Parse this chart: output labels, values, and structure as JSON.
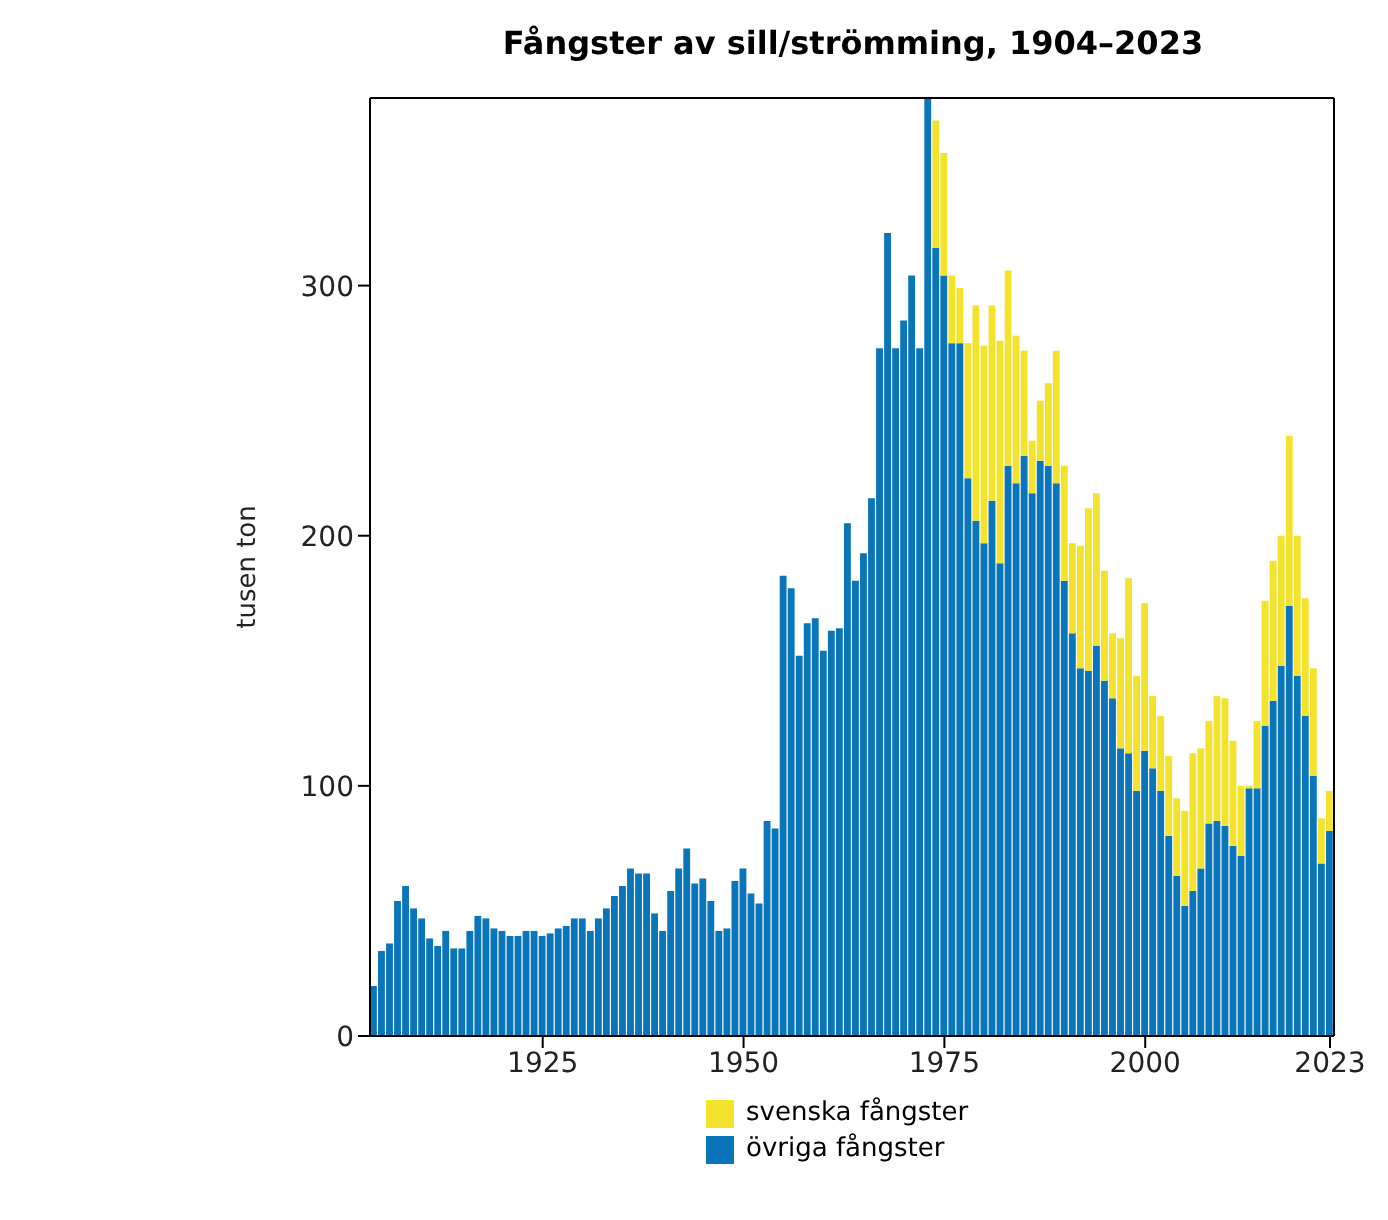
{
  "chart_data": {
    "type": "bar",
    "title": "Fångster av sill/strömming, 1904–2023",
    "ylabel": "tusen ton",
    "stacked": true,
    "legend": "bottom",
    "grid": false,
    "x": [
      1904,
      1905,
      1906,
      1907,
      1908,
      1909,
      1910,
      1911,
      1912,
      1913,
      1914,
      1915,
      1916,
      1917,
      1918,
      1919,
      1920,
      1921,
      1922,
      1923,
      1924,
      1925,
      1926,
      1927,
      1928,
      1929,
      1930,
      1931,
      1932,
      1933,
      1934,
      1935,
      1936,
      1937,
      1938,
      1939,
      1940,
      1941,
      1942,
      1943,
      1944,
      1945,
      1946,
      1947,
      1948,
      1949,
      1950,
      1951,
      1952,
      1953,
      1954,
      1955,
      1956,
      1957,
      1958,
      1959,
      1960,
      1961,
      1962,
      1963,
      1964,
      1965,
      1966,
      1967,
      1968,
      1969,
      1970,
      1971,
      1972,
      1973,
      1974,
      1975,
      1976,
      1977,
      1978,
      1979,
      1980,
      1981,
      1982,
      1983,
      1984,
      1985,
      1986,
      1987,
      1988,
      1989,
      1990,
      1991,
      1992,
      1993,
      1994,
      1995,
      1996,
      1997,
      1998,
      1999,
      2000,
      2001,
      2002,
      2003,
      2004,
      2005,
      2006,
      2007,
      2008,
      2009,
      2010,
      2011,
      2012,
      2013,
      2014,
      2015,
      2016,
      2017,
      2018,
      2019,
      2020,
      2021,
      2022,
      2023
    ],
    "xlim": [
      1903.5,
      2023.5
    ],
    "xticks": [
      1925,
      1950,
      1975,
      2000,
      2023
    ],
    "ylim": [
      0,
      375
    ],
    "yticks": [
      0,
      100,
      200,
      300
    ],
    "series": [
      {
        "name": "övriga fångster",
        "color": "#0a75b8",
        "values": [
          20,
          34,
          37,
          54,
          60,
          51,
          47,
          39,
          36,
          42,
          35,
          35,
          42,
          48,
          47,
          43,
          42,
          40,
          40,
          42,
          42,
          40,
          41,
          43,
          44,
          47,
          47,
          42,
          47,
          51,
          56,
          60,
          67,
          65,
          65,
          49,
          42,
          58,
          67,
          75,
          61,
          63,
          54,
          42,
          43,
          62,
          67,
          57,
          53,
          86,
          83,
          184,
          179,
          152,
          165,
          167,
          154,
          162,
          163,
          205,
          182,
          193,
          215,
          275,
          321,
          275,
          286,
          304,
          275,
          375,
          315,
          304,
          277,
          277,
          223,
          206,
          197,
          214,
          189,
          228,
          221,
          232,
          217,
          230,
          228,
          221,
          182,
          161,
          147,
          146,
          156,
          142,
          135,
          115,
          113,
          98,
          114,
          107,
          98,
          80,
          64,
          52,
          58,
          67,
          85,
          86,
          84,
          76,
          72,
          99,
          99,
          124,
          134,
          148,
          172,
          144,
          128,
          104,
          69,
          82
        ]
      },
      {
        "name": "svenska fångster",
        "color": "#f3e22e",
        "values": [
          0,
          0,
          0,
          0,
          0,
          0,
          0,
          0,
          0,
          0,
          0,
          0,
          0,
          0,
          0,
          0,
          0,
          0,
          0,
          0,
          0,
          0,
          0,
          0,
          0,
          0,
          0,
          0,
          0,
          0,
          0,
          0,
          0,
          0,
          0,
          0,
          0,
          0,
          0,
          0,
          0,
          0,
          0,
          0,
          0,
          0,
          0,
          0,
          0,
          0,
          0,
          0,
          0,
          0,
          0,
          0,
          0,
          0,
          0,
          0,
          0,
          0,
          0,
          0,
          0,
          0,
          0,
          0,
          0,
          0,
          51,
          49,
          27,
          22,
          54,
          86,
          79,
          78,
          89,
          78,
          59,
          42,
          21,
          24,
          33,
          53,
          46,
          36,
          49,
          65,
          61,
          44,
          26,
          44,
          70,
          46,
          59,
          29,
          30,
          32,
          31,
          38,
          55,
          48,
          41,
          50,
          51,
          42,
          28,
          1,
          27,
          50,
          56,
          52,
          68,
          56,
          47,
          43,
          18,
          16
        ]
      }
    ]
  }
}
